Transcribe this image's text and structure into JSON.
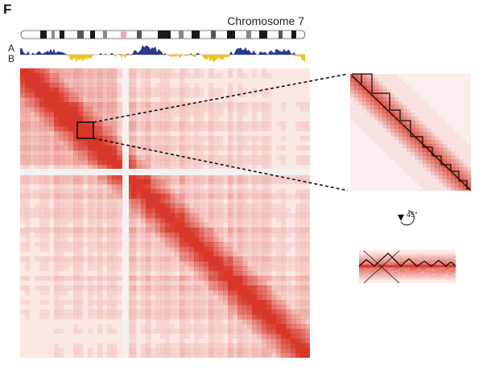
{
  "panel_label": "F",
  "chromosome_title": "Chromosome 7",
  "track_labels": {
    "a": "A",
    "b": "B"
  },
  "rotation_label": "45°",
  "colors": {
    "heatmap": "#d7382b",
    "heatmap_light": "#f7dcd8",
    "compartment_a": "#2a3a8f",
    "compartment_b": "#f2c21b",
    "ideogram_dark": "#1a1a1a",
    "centromere": "#f3a9b4"
  }
}
